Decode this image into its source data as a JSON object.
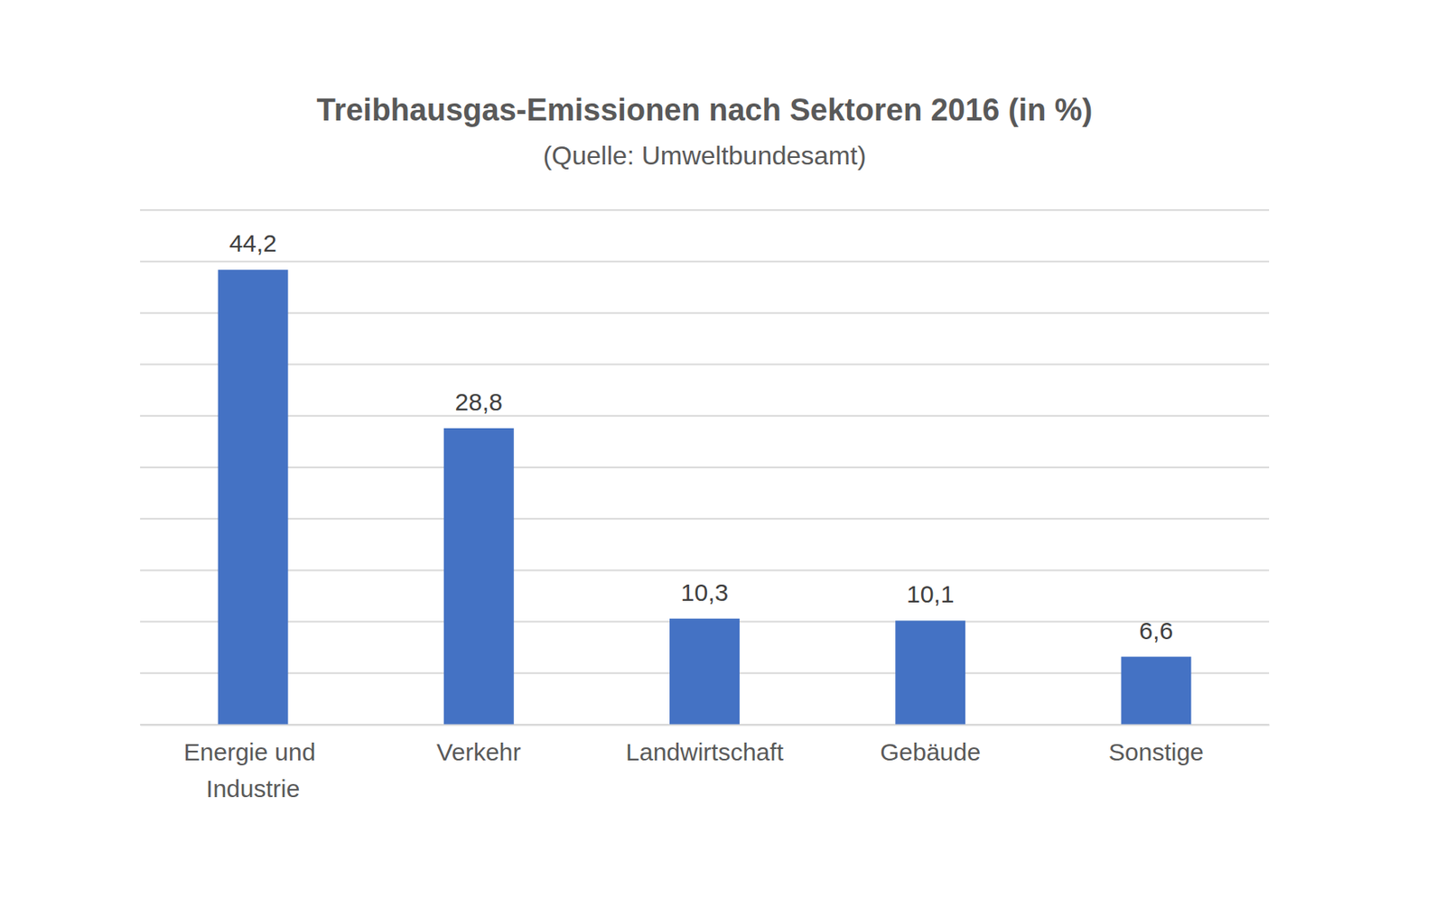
{
  "chart_data": {
    "type": "bar",
    "title": "Treibhausgas-Emissionen nach Sektoren 2016 (in %)",
    "subtitle": "(Quelle: Umweltbundesamt)",
    "categories": [
      "Energie und Industrie",
      "Verkehr",
      "Landwirtschaft",
      "Gebäude",
      "Sonstige"
    ],
    "values": [
      44.2,
      28.8,
      10.3,
      10.1,
      6.6
    ],
    "value_labels": [
      "44,2",
      "28,8",
      "10,3",
      "10,1",
      "6,6"
    ],
    "color": "#4472c4",
    "ylim": [
      0,
      50
    ],
    "yticks": [
      0,
      5,
      10,
      15,
      20,
      25,
      30,
      35,
      40,
      45,
      50
    ],
    "grid": true,
    "data_labels": true,
    "tick_labels": "x"
  }
}
